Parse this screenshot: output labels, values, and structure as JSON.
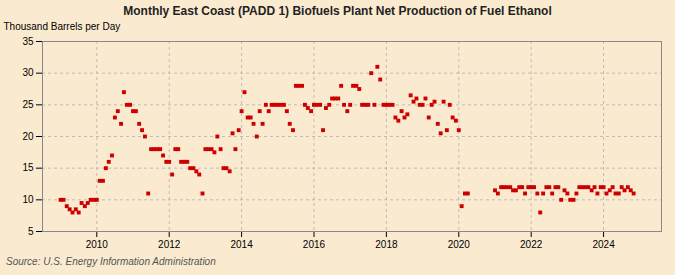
{
  "chart_data": {
    "type": "scatter",
    "title": "Monthly East Coast (PADD 1) Biofuels Plant Net Production of Fuel Ethanol",
    "ylabel": "Thousand Barrels per Day",
    "annotations": [
      "Source: U.S. Energy Information Administration"
    ],
    "color": "#cc0000",
    "marker": "square",
    "grid": true,
    "xlim": [
      2008.5,
      2025.6
    ],
    "xticks": [
      2010,
      2012,
      2014,
      2016,
      2018,
      2020,
      2022,
      2024
    ],
    "ylim": [
      5,
      35
    ],
    "yticks": [
      5,
      10,
      15,
      20,
      25,
      30,
      35
    ],
    "x": [
      2009.0,
      2009.08,
      2009.17,
      2009.25,
      2009.33,
      2009.42,
      2009.5,
      2009.58,
      2009.67,
      2009.75,
      2009.83,
      2009.92,
      2010.0,
      2010.08,
      2010.17,
      2010.25,
      2010.33,
      2010.42,
      2010.5,
      2010.58,
      2010.67,
      2010.75,
      2010.83,
      2010.92,
      2011.0,
      2011.08,
      2011.17,
      2011.25,
      2011.33,
      2011.42,
      2011.5,
      2011.58,
      2011.67,
      2011.75,
      2011.83,
      2011.92,
      2012.0,
      2012.08,
      2012.17,
      2012.25,
      2012.33,
      2012.42,
      2012.5,
      2012.58,
      2012.67,
      2012.75,
      2012.83,
      2012.92,
      2013.0,
      2013.08,
      2013.17,
      2013.25,
      2013.33,
      2013.42,
      2013.5,
      2013.58,
      2013.67,
      2013.75,
      2013.83,
      2013.92,
      2014.0,
      2014.08,
      2014.17,
      2014.25,
      2014.33,
      2014.42,
      2014.5,
      2014.58,
      2014.67,
      2014.75,
      2014.83,
      2014.92,
      2015.0,
      2015.08,
      2015.17,
      2015.25,
      2015.33,
      2015.42,
      2015.5,
      2015.58,
      2015.67,
      2015.75,
      2015.83,
      2015.92,
      2016.0,
      2016.08,
      2016.17,
      2016.25,
      2016.33,
      2016.42,
      2016.5,
      2016.58,
      2016.67,
      2016.75,
      2016.83,
      2016.92,
      2017.0,
      2017.08,
      2017.17,
      2017.25,
      2017.33,
      2017.42,
      2017.5,
      2017.58,
      2017.67,
      2017.75,
      2017.83,
      2017.92,
      2018.0,
      2018.08,
      2018.17,
      2018.25,
      2018.33,
      2018.42,
      2018.5,
      2018.58,
      2018.67,
      2018.75,
      2018.83,
      2018.92,
      2019.0,
      2019.08,
      2019.17,
      2019.25,
      2019.33,
      2019.42,
      2019.5,
      2019.58,
      2019.67,
      2019.75,
      2019.83,
      2019.92,
      2020.0,
      2020.08,
      2020.17,
      2020.25,
      2021.0,
      2021.08,
      2021.17,
      2021.25,
      2021.33,
      2021.42,
      2021.5,
      2021.58,
      2021.67,
      2021.75,
      2021.83,
      2021.92,
      2022.0,
      2022.08,
      2022.17,
      2022.25,
      2022.33,
      2022.42,
      2022.5,
      2022.58,
      2022.67,
      2022.75,
      2022.83,
      2022.92,
      2023.0,
      2023.08,
      2023.17,
      2023.25,
      2023.33,
      2023.42,
      2023.5,
      2023.58,
      2023.67,
      2023.75,
      2023.83,
      2023.92,
      2024.0,
      2024.08,
      2024.17,
      2024.25,
      2024.33,
      2024.42,
      2024.5,
      2024.58,
      2024.67,
      2024.75,
      2024.83
    ],
    "values": [
      10.0,
      10.0,
      9.0,
      8.5,
      8.0,
      8.5,
      8.0,
      9.5,
      9.0,
      9.5,
      10.0,
      10.0,
      10.0,
      13.0,
      13.0,
      15.0,
      16.0,
      17.0,
      23.0,
      24.0,
      22.0,
      27.0,
      25.0,
      25.0,
      24.0,
      24.0,
      22.0,
      21.0,
      20.0,
      11.0,
      18.0,
      18.0,
      18.0,
      18.0,
      17.0,
      16.0,
      16.0,
      14.0,
      18.0,
      18.0,
      16.0,
      16.0,
      16.0,
      15.0,
      15.0,
      14.5,
      14.0,
      11.0,
      18.0,
      18.0,
      18.0,
      17.5,
      20.0,
      18.0,
      15.0,
      15.0,
      14.5,
      20.5,
      18.0,
      21.0,
      24.0,
      27.0,
      23.0,
      23.0,
      22.0,
      20.0,
      24.0,
      22.0,
      25.0,
      24.0,
      25.0,
      25.0,
      25.0,
      25.0,
      25.0,
      24.0,
      22.0,
      21.0,
      28.0,
      28.0,
      28.0,
      25.0,
      24.5,
      24.0,
      25.0,
      25.0,
      25.0,
      21.0,
      24.5,
      25.0,
      26.0,
      26.0,
      26.0,
      28.0,
      25.0,
      24.0,
      25.0,
      28.0,
      28.0,
      27.5,
      25.0,
      25.0,
      25.0,
      30.0,
      25.0,
      31.0,
      29.0,
      25.0,
      25.0,
      25.0,
      25.0,
      23.0,
      22.5,
      24.0,
      23.0,
      23.5,
      26.5,
      25.5,
      26.0,
      25.0,
      25.0,
      26.0,
      23.0,
      25.0,
      25.5,
      22.0,
      20.5,
      25.5,
      21.0,
      25.0,
      23.0,
      22.5,
      21.0,
      9.0,
      11.0,
      11.0,
      11.5,
      11.0,
      12.0,
      12.0,
      12.0,
      12.0,
      11.5,
      11.5,
      12.0,
      12.0,
      11.0,
      12.0,
      12.0,
      12.0,
      11.0,
      8.0,
      11.0,
      12.0,
      12.0,
      11.0,
      12.0,
      12.0,
      10.0,
      11.5,
      11.0,
      10.0,
      10.0,
      11.0,
      12.0,
      12.0,
      12.0,
      12.0,
      11.5,
      12.0,
      11.0,
      12.0,
      12.0,
      11.0,
      11.5,
      12.0,
      11.0,
      11.0,
      12.0,
      11.5,
      12.0,
      11.5,
      11.0
    ]
  }
}
